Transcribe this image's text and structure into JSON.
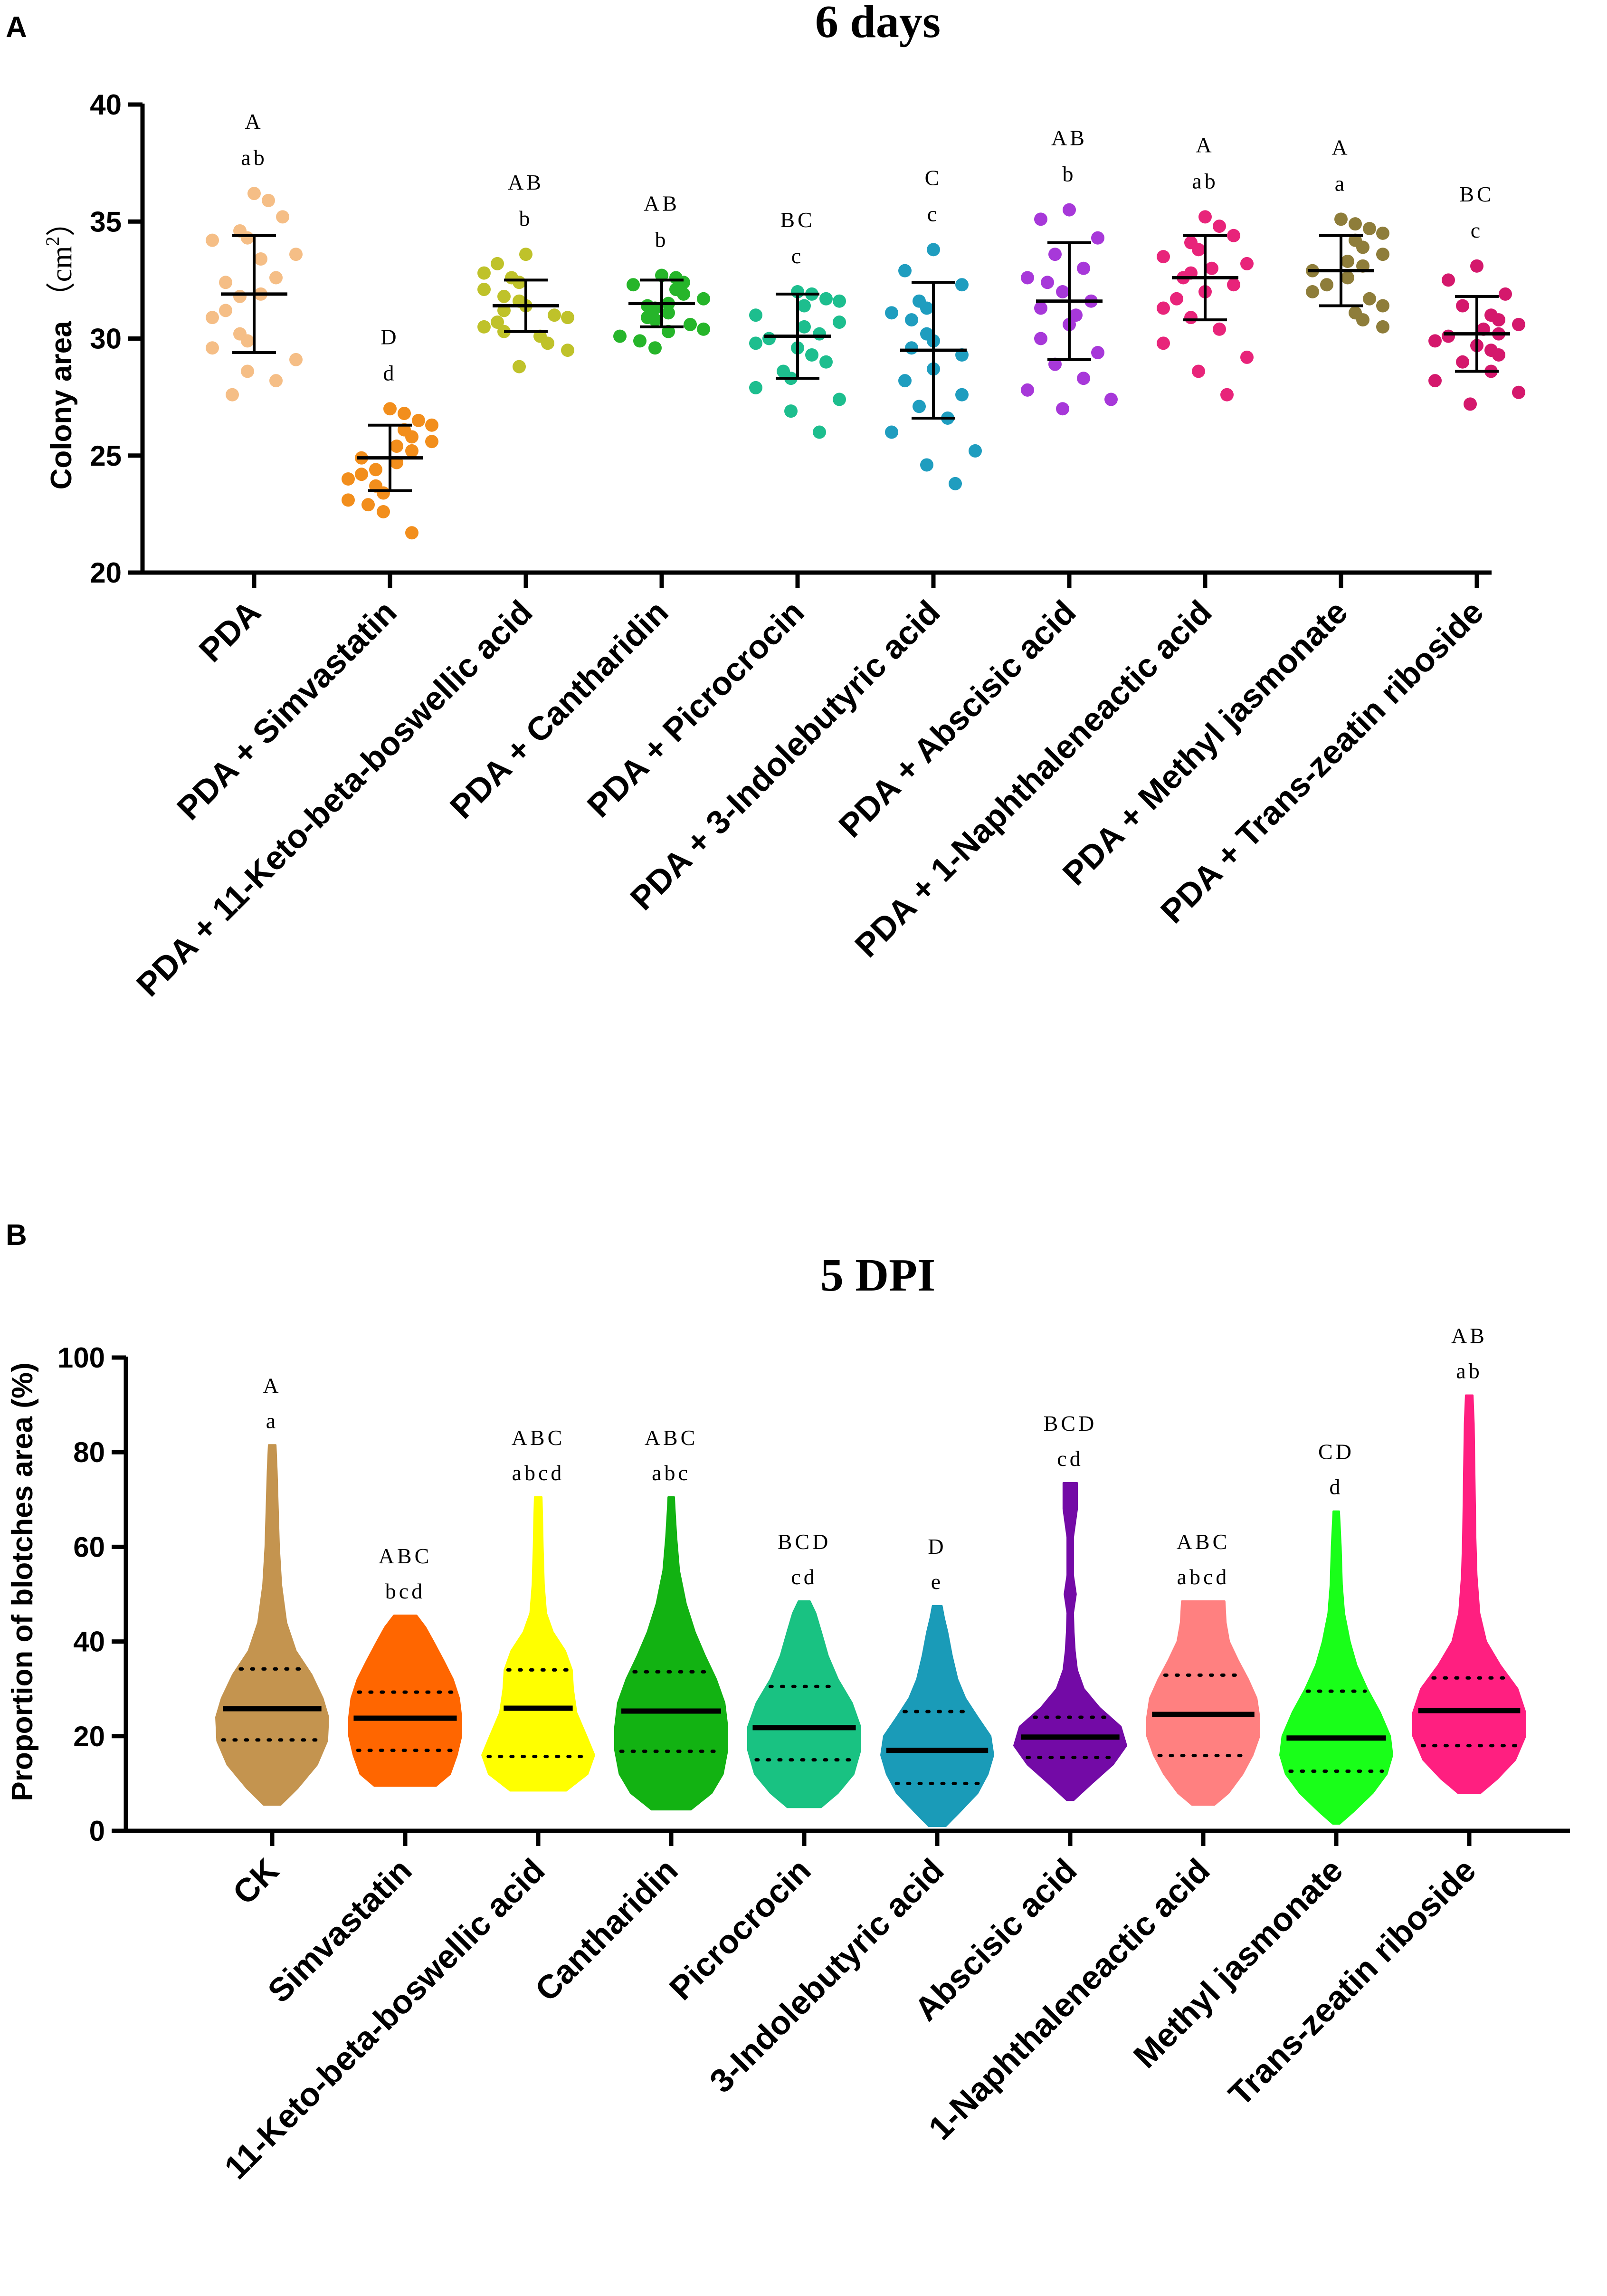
{
  "chart_data": [
    {
      "panel_label": "A",
      "type": "scatter",
      "title": "6 days",
      "ylabel": "Colony area",
      "yunit": "cm",
      "yunit_superscript": "2",
      "ylim": [
        20,
        40
      ],
      "yticks": [
        20,
        25,
        30,
        35,
        40
      ],
      "categories": [
        "PDA",
        "PDA + Simvastatin",
        "PDA + 11-Keto-beta-boswellic acid",
        "PDA + Cantharidin",
        "PDA + Picrocrocin",
        "PDA + 3-Indolebutyric acid",
        "PDA + Abscisic acid",
        "PDA + 1-Naphthaleneactic acid",
        "PDA + Methyl jasmonate",
        "PDA + Trans-zeatin riboside"
      ],
      "colors": [
        "#F5BE86",
        "#F28E1C",
        "#BFC22A",
        "#26B52A",
        "#1DBE8E",
        "#1F9DBF",
        "#A738D9",
        "#E8247A",
        "#8E7D3A",
        "#D4186C"
      ],
      "means": [
        31.9,
        24.9,
        31.4,
        31.5,
        30.1,
        29.5,
        31.6,
        32.6,
        32.9,
        30.2
      ],
      "sd": [
        2.5,
        1.4,
        1.1,
        1.0,
        1.8,
        2.9,
        2.5,
        1.8,
        1.5,
        1.6
      ],
      "upper_letters": [
        "A",
        "D",
        "AB",
        "AB",
        "BC",
        "C",
        "AB",
        "A",
        "A",
        "BC"
      ],
      "lower_letters": [
        "ab",
        "d",
        "b",
        "b",
        "c",
        "c",
        "b",
        "ab",
        "a",
        "c"
      ],
      "points": [
        [
          36.2,
          35.9,
          35.2,
          34.6,
          34.3,
          34.2,
          33.6,
          33.4,
          32.6,
          32.4,
          31.9,
          31.8,
          31.2,
          30.9,
          30.2,
          29.9,
          29.6,
          29.1,
          28.6,
          28.2,
          27.6
        ],
        [
          27.0,
          26.8,
          26.5,
          26.3,
          26.1,
          25.8,
          25.6,
          25.4,
          25.2,
          24.9,
          24.7,
          24.4,
          24.2,
          24.0,
          23.7,
          23.4,
          23.1,
          22.9,
          22.6,
          21.7
        ],
        [
          33.6,
          33.2,
          32.8,
          32.6,
          32.4,
          32.1,
          31.8,
          31.6,
          31.4,
          31.2,
          31.0,
          30.9,
          30.7,
          30.5,
          30.3,
          30.1,
          29.8,
          29.5,
          28.8
        ],
        [
          32.7,
          32.6,
          32.4,
          32.3,
          32.1,
          31.9,
          31.7,
          31.5,
          31.4,
          31.3,
          31.1,
          30.9,
          30.8,
          30.6,
          30.4,
          30.3,
          30.1,
          29.9,
          29.6
        ],
        [
          32.0,
          31.9,
          31.7,
          31.6,
          31.4,
          31.0,
          30.7,
          30.5,
          30.2,
          30.0,
          29.8,
          29.6,
          29.3,
          29.0,
          28.6,
          28.3,
          27.9,
          27.4,
          26.9,
          26.0
        ],
        [
          33.8,
          32.9,
          32.3,
          31.6,
          31.3,
          31.1,
          30.8,
          30.2,
          29.9,
          29.6,
          29.3,
          28.7,
          28.2,
          27.6,
          27.1,
          26.6,
          26.0,
          25.2,
          24.6,
          23.8
        ],
        [
          35.5,
          35.1,
          34.3,
          33.6,
          33.0,
          32.6,
          32.4,
          32.0,
          31.6,
          31.3,
          31.0,
          30.6,
          30.0,
          29.4,
          28.9,
          28.3,
          27.8,
          27.4,
          27.0
        ],
        [
          35.2,
          34.8,
          34.4,
          34.1,
          33.8,
          33.5,
          33.2,
          33.0,
          32.8,
          32.6,
          32.3,
          32.0,
          31.7,
          31.3,
          30.9,
          30.4,
          29.8,
          29.2,
          28.6,
          27.6
        ],
        [
          35.1,
          34.9,
          34.7,
          34.5,
          34.2,
          33.9,
          33.6,
          33.3,
          33.1,
          32.9,
          32.6,
          32.3,
          32.0,
          31.7,
          31.4,
          31.1,
          30.8,
          30.5
        ],
        [
          33.1,
          32.5,
          31.9,
          31.4,
          31.0,
          30.8,
          30.6,
          30.4,
          30.2,
          30.1,
          29.9,
          29.7,
          29.5,
          29.3,
          29.0,
          28.6,
          28.2,
          27.7,
          27.2
        ]
      ]
    },
    {
      "panel_label": "B",
      "type": "violin",
      "title": "5 DPI",
      "ylabel": "Proportion of blotches area (%)",
      "ylim": [
        0,
        100
      ],
      "yticks": [
        0,
        20,
        40,
        60,
        80,
        100
      ],
      "categories": [
        "CK",
        "Simvastatin",
        "11-Keto-beta-boswellic acid",
        "Cantharidin",
        "Picrocrocin",
        "3-Indolebutyric acid",
        "Abscisic acid",
        "1-Naphthaleneactic acid",
        "Methyl jasmonate",
        "Trans-zeatin riboside"
      ],
      "colors": [
        "#C4944F",
        "#FF6600",
        "#FFFF00",
        "#12B212",
        "#19C282",
        "#1A9BB8",
        "#730AA6",
        "#FF8080",
        "#19FF19",
        "#FF1F80"
      ],
      "min": [
        5.5,
        9.5,
        8.5,
        4.5,
        5.0,
        1.0,
        6.5,
        5.5,
        1.5,
        8.0
      ],
      "max": [
        81.5,
        45.5,
        70.5,
        70.5,
        48.5,
        47.5,
        73.5,
        48.5,
        67.5,
        92.0
      ],
      "median": [
        25.8,
        23.8,
        25.9,
        25.3,
        21.8,
        17.0,
        19.8,
        24.6,
        19.6,
        25.4
      ],
      "q1": [
        19.2,
        17.0,
        15.7,
        16.8,
        15.0,
        10.0,
        15.5,
        15.9,
        12.6,
        18.0
      ],
      "q3": [
        34.2,
        29.3,
        34.0,
        33.6,
        30.5,
        25.2,
        24.0,
        32.9,
        29.5,
        32.3
      ],
      "upper_letters": [
        "A",
        "ABC",
        "ABC",
        "ABC",
        "BCD",
        "D",
        "BCD",
        "ABC",
        "CD",
        "AB"
      ],
      "lower_letters": [
        "a",
        "bcd",
        "abcd",
        "abc",
        "cd",
        "e",
        "cd",
        "abcd",
        "d",
        "ab"
      ],
      "profiles": [
        [
          [
            5.5,
            0.15
          ],
          [
            9,
            0.45
          ],
          [
            14,
            0.8
          ],
          [
            19,
            0.98
          ],
          [
            24,
            1.0
          ],
          [
            28,
            0.9
          ],
          [
            33,
            0.7
          ],
          [
            38,
            0.42
          ],
          [
            44,
            0.25
          ],
          [
            52,
            0.16
          ],
          [
            60,
            0.12
          ],
          [
            68,
            0.1
          ],
          [
            76,
            0.08
          ],
          [
            81.5,
            0.06
          ]
        ],
        [
          [
            9.5,
            0.55
          ],
          [
            12,
            0.8
          ],
          [
            16,
            0.92
          ],
          [
            20,
            1.0
          ],
          [
            24,
            1.0
          ],
          [
            28,
            0.96
          ],
          [
            32,
            0.85
          ],
          [
            36,
            0.68
          ],
          [
            40,
            0.5
          ],
          [
            43,
            0.36
          ],
          [
            45.5,
            0.2
          ]
        ],
        [
          [
            8.5,
            0.5
          ],
          [
            12,
            0.88
          ],
          [
            16,
            1.0
          ],
          [
            20,
            0.86
          ],
          [
            25,
            0.68
          ],
          [
            30,
            0.62
          ],
          [
            34,
            0.6
          ],
          [
            38,
            0.48
          ],
          [
            42,
            0.26
          ],
          [
            46,
            0.14
          ],
          [
            52,
            0.1
          ],
          [
            60,
            0.08
          ],
          [
            66,
            0.07
          ],
          [
            70.5,
            0.06
          ]
        ],
        [
          [
            4.5,
            0.35
          ],
          [
            8,
            0.72
          ],
          [
            12,
            0.92
          ],
          [
            17,
            1.0
          ],
          [
            22,
            1.0
          ],
          [
            27,
            0.95
          ],
          [
            32,
            0.8
          ],
          [
            37,
            0.6
          ],
          [
            42,
            0.42
          ],
          [
            48,
            0.26
          ],
          [
            55,
            0.14
          ],
          [
            62,
            0.09
          ],
          [
            68,
            0.06
          ],
          [
            70.5,
            0.05
          ]
        ],
        [
          [
            5,
            0.3
          ],
          [
            8,
            0.6
          ],
          [
            12,
            0.88
          ],
          [
            17,
            1.0
          ],
          [
            22,
            1.0
          ],
          [
            27,
            0.85
          ],
          [
            32,
            0.6
          ],
          [
            37,
            0.42
          ],
          [
            42,
            0.3
          ],
          [
            46,
            0.2
          ],
          [
            48.5,
            0.1
          ]
        ],
        [
          [
            1,
            0.15
          ],
          [
            4,
            0.4
          ],
          [
            8,
            0.72
          ],
          [
            12,
            0.9
          ],
          [
            16,
            1.0
          ],
          [
            20,
            0.95
          ],
          [
            24,
            0.72
          ],
          [
            28,
            0.5
          ],
          [
            32,
            0.36
          ],
          [
            37,
            0.26
          ],
          [
            42,
            0.18
          ],
          [
            45,
            0.12
          ],
          [
            47.5,
            0.08
          ]
        ],
        [
          [
            6.5,
            0.06
          ],
          [
            10,
            0.38
          ],
          [
            14,
            0.76
          ],
          [
            18,
            1.0
          ],
          [
            22,
            0.9
          ],
          [
            26,
            0.52
          ],
          [
            30,
            0.24
          ],
          [
            34,
            0.12
          ],
          [
            38,
            0.08
          ],
          [
            42,
            0.06
          ],
          [
            46,
            0.05
          ],
          [
            50,
            0.1
          ],
          [
            54,
            0.05
          ],
          [
            62,
            0.05
          ],
          [
            68,
            0.12
          ],
          [
            73.5,
            0.12
          ]
        ],
        [
          [
            5.5,
            0.2
          ],
          [
            8,
            0.45
          ],
          [
            12,
            0.7
          ],
          [
            16,
            0.88
          ],
          [
            20,
            1.0
          ],
          [
            24,
            1.0
          ],
          [
            28,
            0.95
          ],
          [
            32,
            0.8
          ],
          [
            36,
            0.62
          ],
          [
            40,
            0.46
          ],
          [
            44,
            0.4
          ],
          [
            48.5,
            0.38
          ]
        ],
        [
          [
            1.5,
            0.06
          ],
          [
            4,
            0.3
          ],
          [
            8,
            0.65
          ],
          [
            12,
            0.9
          ],
          [
            16,
            1.0
          ],
          [
            20,
            0.96
          ],
          [
            25,
            0.78
          ],
          [
            30,
            0.55
          ],
          [
            35,
            0.36
          ],
          [
            40,
            0.24
          ],
          [
            46,
            0.14
          ],
          [
            52,
            0.1
          ],
          [
            60,
            0.08
          ],
          [
            67.5,
            0.05
          ]
        ],
        [
          [
            8,
            0.2
          ],
          [
            11,
            0.5
          ],
          [
            15,
            0.82
          ],
          [
            20,
            1.0
          ],
          [
            25,
            1.0
          ],
          [
            30,
            0.86
          ],
          [
            35,
            0.55
          ],
          [
            40,
            0.3
          ],
          [
            46,
            0.18
          ],
          [
            54,
            0.13
          ],
          [
            62,
            0.11
          ],
          [
            70,
            0.1
          ],
          [
            78,
            0.09
          ],
          [
            86,
            0.08
          ],
          [
            92,
            0.06
          ]
        ]
      ]
    }
  ]
}
